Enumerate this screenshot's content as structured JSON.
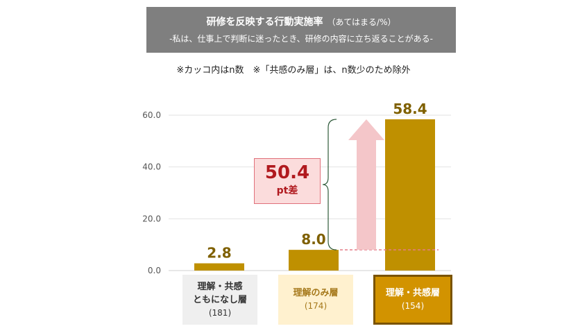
{
  "header": {
    "title": "研修を反映する行動実施率",
    "title_note": "（あてはまる/%）",
    "subtitle": "-私は、仕事上で判断に迷ったとき、研修の内容に立ち返ることがある-",
    "note": "※カッコ内はn数　※「共感のみ層」は、n数少のため除外"
  },
  "difference": {
    "value": "50.4",
    "unit": "pt差"
  },
  "chart_data": {
    "type": "bar",
    "categories": [
      {
        "name": "理解・共感\nともになし層",
        "n": "(181)"
      },
      {
        "name": "理解のみ層",
        "n": "(174)"
      },
      {
        "name": "理解・共感層",
        "n": "(154)"
      }
    ],
    "values": [
      2.8,
      8.0,
      58.4
    ],
    "value_labels": [
      "2.8",
      "8.0",
      "58.4"
    ],
    "ylim": [
      0,
      60
    ],
    "yticks": [
      "0.0",
      "20.0",
      "40.0",
      "60.0"
    ],
    "bar_color": "#bf9000",
    "label_color": "#7f6000",
    "grid": true
  }
}
